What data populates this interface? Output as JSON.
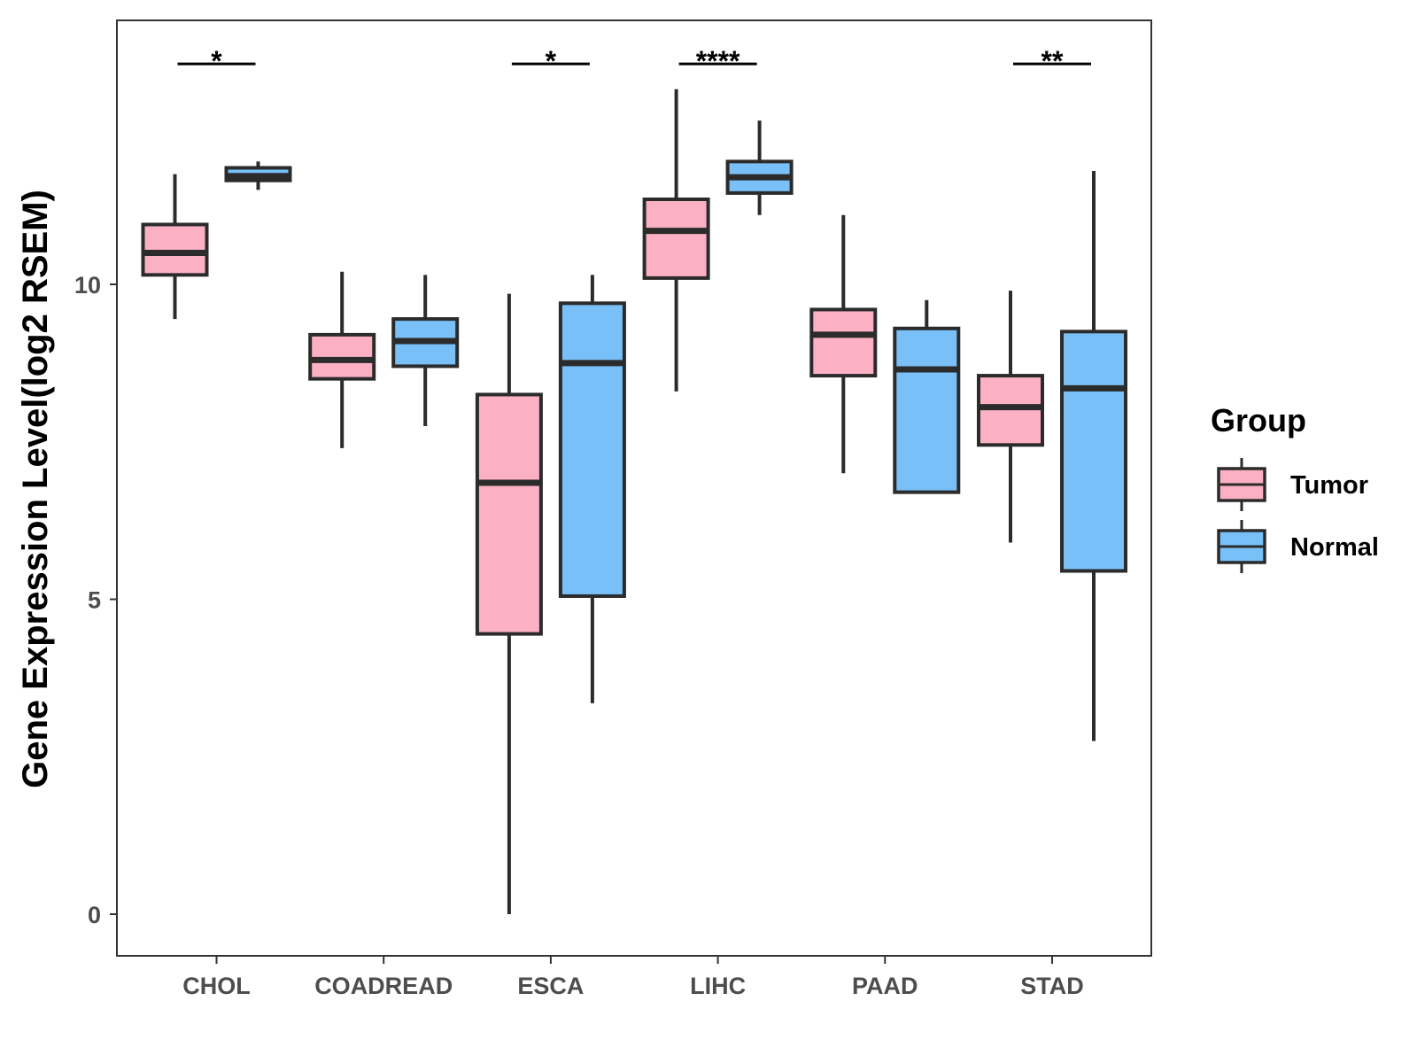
{
  "chart_data": {
    "type": "boxplot",
    "title": "",
    "xlabel": "",
    "ylabel": "Gene Expression Level(log2 RSEM)",
    "ylim": [
      -0.65,
      14.2
    ],
    "yticks": [
      0,
      5,
      10
    ],
    "ytick_labels": [
      "0",
      "5",
      "10"
    ],
    "categories": [
      "CHOL",
      "COADREAD",
      "ESCA",
      "LIHC",
      "PAAD",
      "STAD"
    ],
    "legend": {
      "title": "Group",
      "placement": "right",
      "entries": [
        "Tumor",
        "Normal"
      ]
    },
    "series": [
      {
        "name": "Tumor",
        "color": "#fbb1c3",
        "boxes": [
          {
            "min": 9.45,
            "q1": 10.15,
            "median": 10.5,
            "q3": 10.95,
            "max": 11.75
          },
          {
            "min": 7.4,
            "q1": 8.5,
            "median": 8.8,
            "q3": 9.2,
            "max": 10.2
          },
          {
            "min": 0.0,
            "q1": 4.45,
            "median": 6.85,
            "q3": 8.25,
            "max": 9.85
          },
          {
            "min": 8.3,
            "q1": 10.1,
            "median": 10.85,
            "q3": 11.35,
            "max": 13.1
          },
          {
            "min": 7.0,
            "q1": 8.55,
            "median": 9.2,
            "q3": 9.6,
            "max": 11.1
          },
          {
            "min": 5.9,
            "q1": 7.45,
            "median": 8.05,
            "q3": 8.55,
            "max": 9.9
          }
        ]
      },
      {
        "name": "Normal",
        "color": "#78c0f7",
        "boxes": [
          {
            "min": 11.5,
            "q1": 11.65,
            "median": 11.72,
            "q3": 11.85,
            "max": 11.95
          },
          {
            "min": 7.75,
            "q1": 8.7,
            "median": 9.1,
            "q3": 9.45,
            "max": 10.15
          },
          {
            "min": 3.35,
            "q1": 5.05,
            "median": 8.75,
            "q3": 9.7,
            "max": 10.15
          },
          {
            "min": 11.1,
            "q1": 11.45,
            "median": 11.7,
            "q3": 11.95,
            "max": 12.6
          },
          {
            "min": 6.7,
            "q1": 6.7,
            "median": 8.65,
            "q3": 9.3,
            "max": 9.75
          },
          {
            "min": 2.75,
            "q1": 5.45,
            "median": 8.35,
            "q3": 9.25,
            "max": 11.8
          }
        ]
      }
    ],
    "significance": [
      {
        "category": "CHOL",
        "label": "*"
      },
      {
        "category": "ESCA",
        "label": "*"
      },
      {
        "category": "LIHC",
        "label": "****"
      },
      {
        "category": "STAD",
        "label": "**"
      }
    ],
    "significance_y": 13.5
  }
}
